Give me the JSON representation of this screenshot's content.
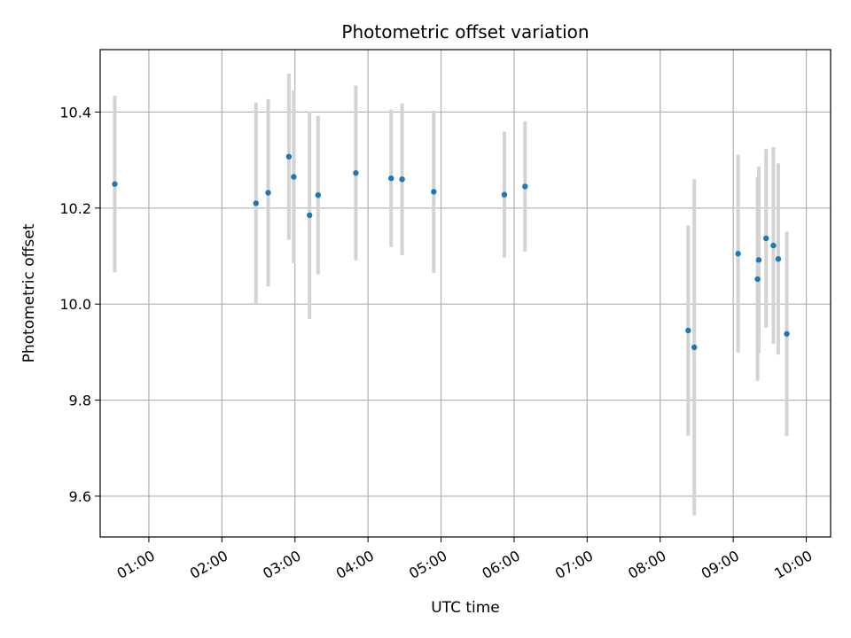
{
  "chart_data": {
    "type": "scatter",
    "title": "Photometric offset variation",
    "xlabel": "UTC time",
    "ylabel": "Photometric offset",
    "grid": true,
    "marker_color": "#1f77b4",
    "errorbar_color": "#d3d3d3",
    "xlim": [
      "00:20",
      "10:20"
    ],
    "ylim": [
      9.515,
      10.53
    ],
    "xticks": [
      "01:00",
      "02:00",
      "03:00",
      "04:00",
      "05:00",
      "06:00",
      "07:00",
      "08:00",
      "09:00",
      "10:00"
    ],
    "yticks": [
      "9.6",
      "9.8",
      "10.0",
      "10.2",
      "10.4"
    ],
    "points": [
      {
        "x": "00:32",
        "y": 10.25,
        "yerr": 0.184
      },
      {
        "x": "02:28",
        "y": 10.21,
        "yerr": 0.21
      },
      {
        "x": "02:38",
        "y": 10.232,
        "yerr": 0.195
      },
      {
        "x": "02:55",
        "y": 10.307,
        "yerr": 0.173
      },
      {
        "x": "02:59",
        "y": 10.265,
        "yerr": 0.18
      },
      {
        "x": "03:12",
        "y": 10.185,
        "yerr": 0.216
      },
      {
        "x": "03:19",
        "y": 10.227,
        "yerr": 0.165
      },
      {
        "x": "03:50",
        "y": 10.273,
        "yerr": 0.182
      },
      {
        "x": "04:19",
        "y": 10.262,
        "yerr": 0.143
      },
      {
        "x": "04:28",
        "y": 10.26,
        "yerr": 0.158
      },
      {
        "x": "04:54",
        "y": 10.234,
        "yerr": 0.169
      },
      {
        "x": "05:52",
        "y": 10.228,
        "yerr": 0.131
      },
      {
        "x": "06:09",
        "y": 10.245,
        "yerr": 0.136
      },
      {
        "x": "08:23",
        "y": 9.945,
        "yerr": 0.219
      },
      {
        "x": "08:28",
        "y": 9.91,
        "yerr": 0.35
      },
      {
        "x": "09:04",
        "y": 10.105,
        "yerr": 0.206
      },
      {
        "x": "09:20",
        "y": 10.052,
        "yerr": 0.212
      },
      {
        "x": "09:21",
        "y": 10.092,
        "yerr": 0.194
      },
      {
        "x": "09:27",
        "y": 10.137,
        "yerr": 0.186
      },
      {
        "x": "09:33",
        "y": 10.122,
        "yerr": 0.205
      },
      {
        "x": "09:37",
        "y": 10.094,
        "yerr": 0.199
      },
      {
        "x": "09:44",
        "y": 9.938,
        "yerr": 0.213
      }
    ]
  }
}
